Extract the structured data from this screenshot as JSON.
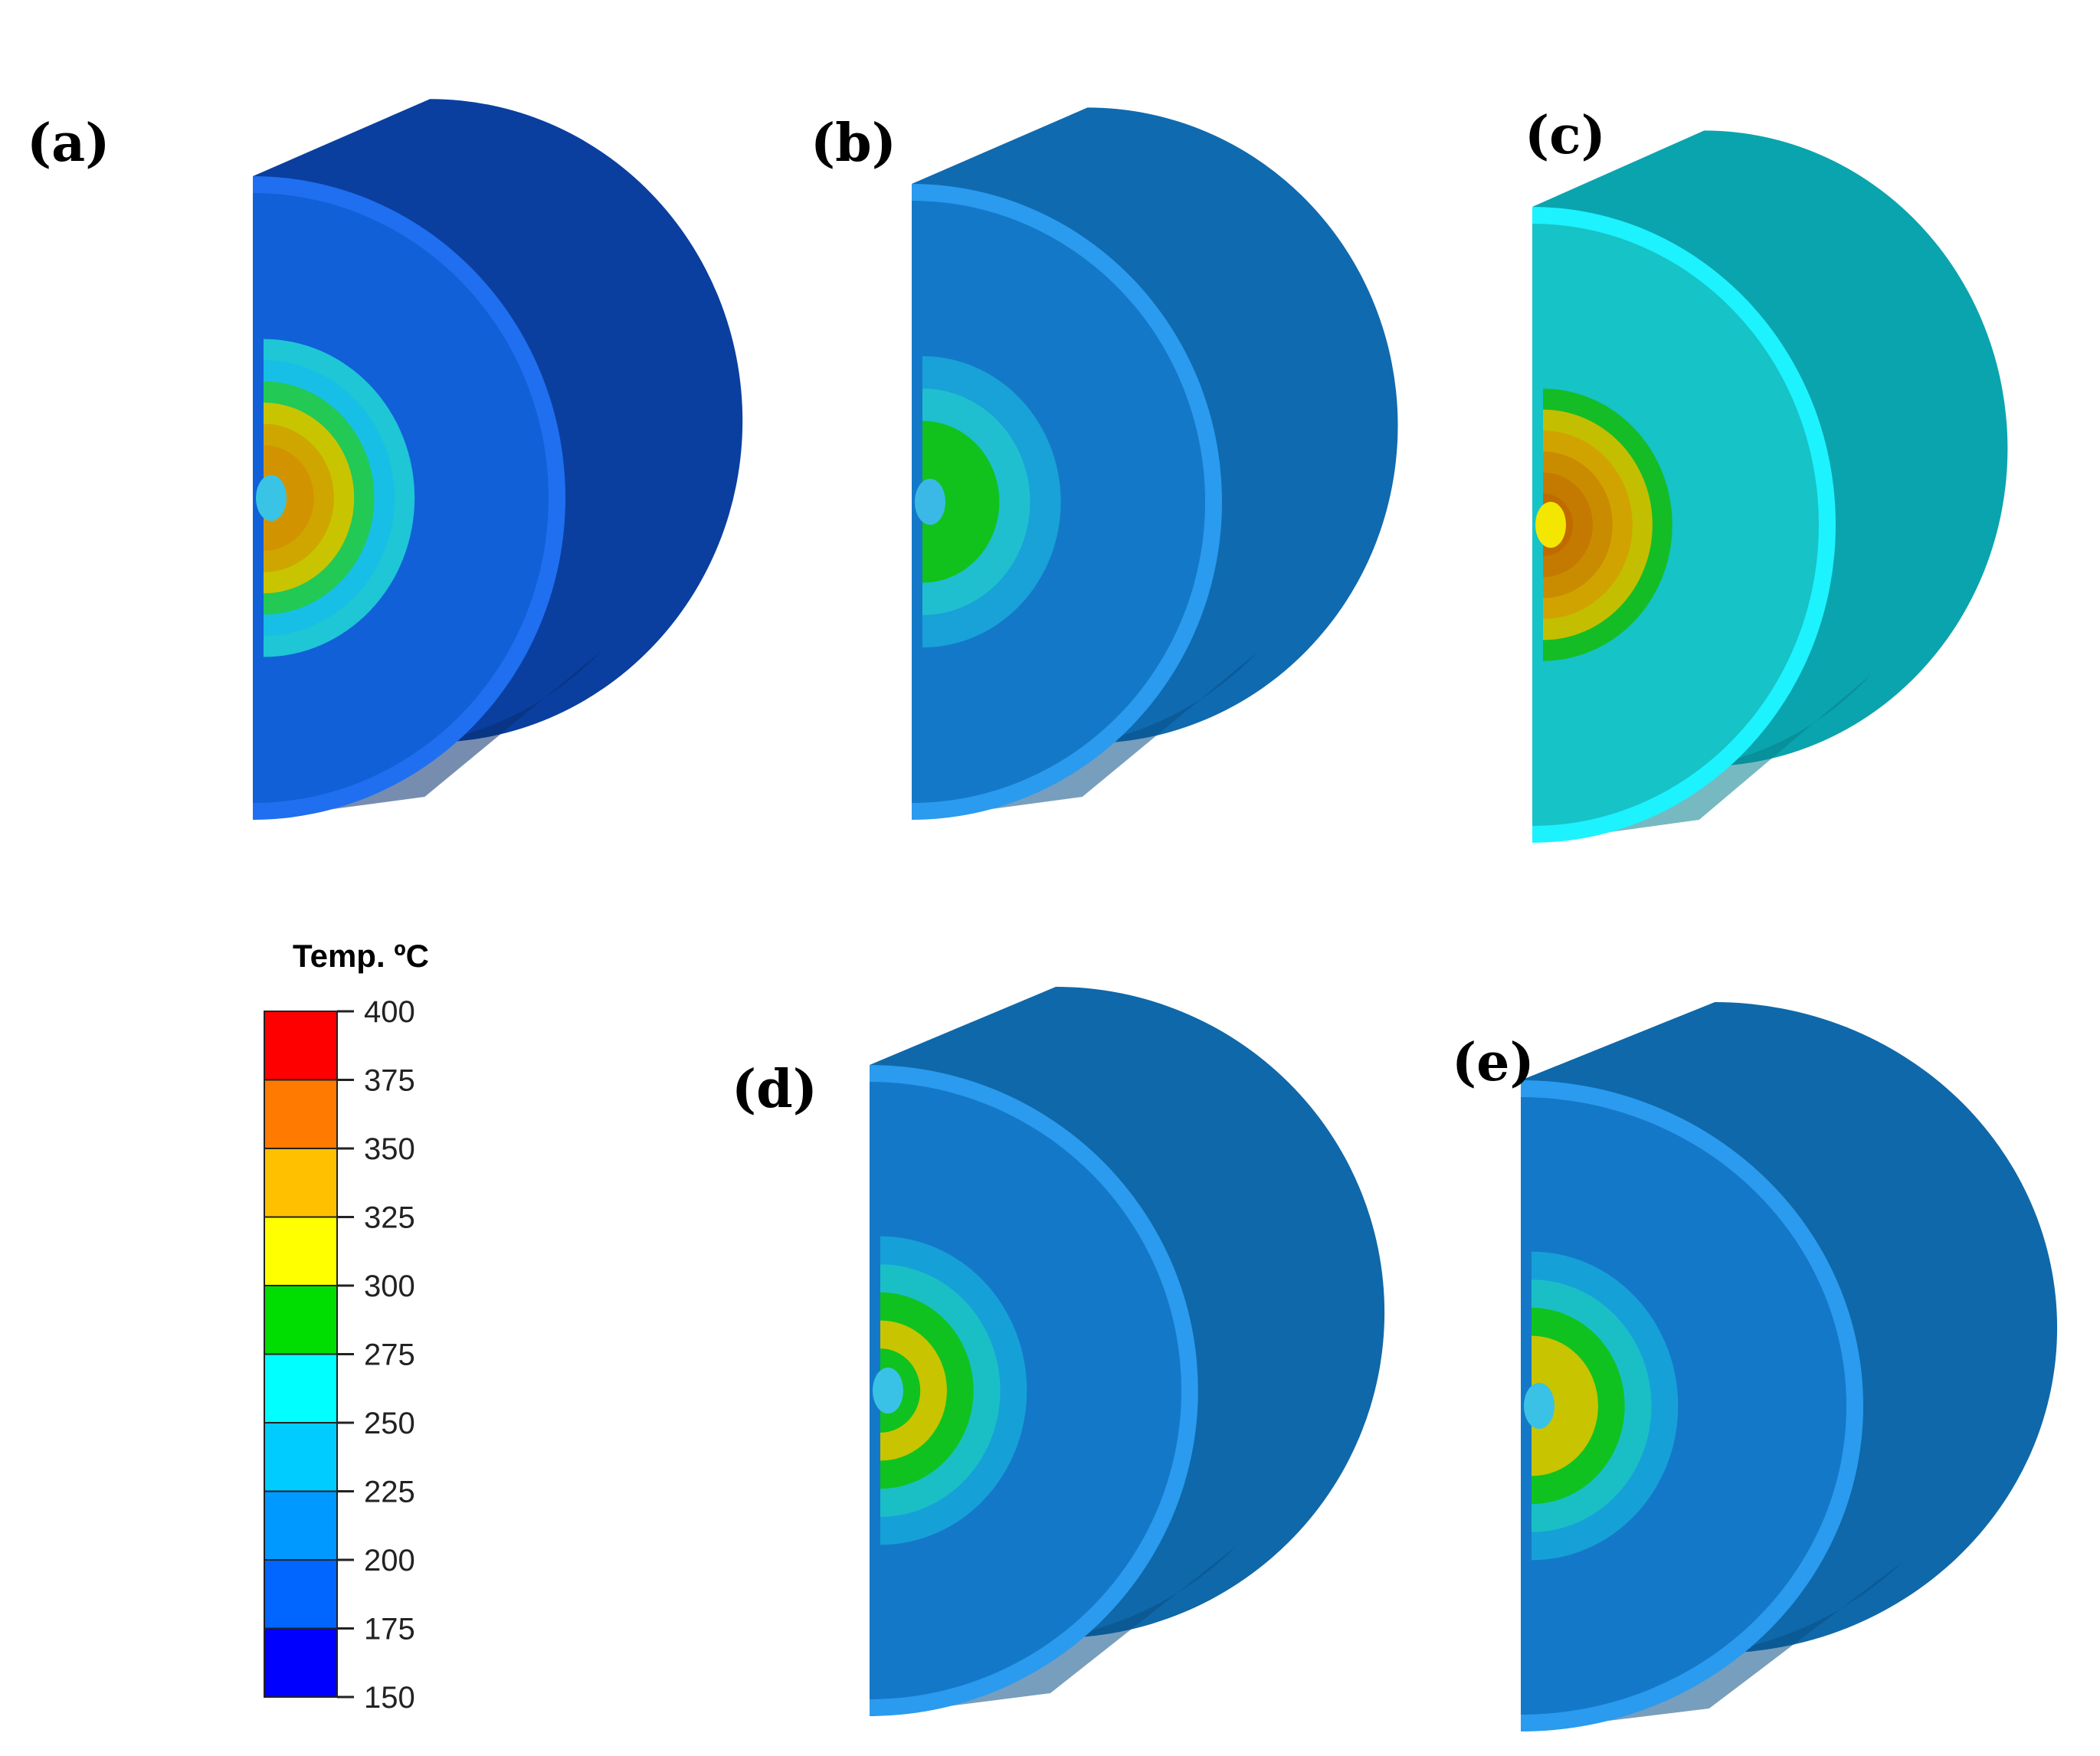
{
  "panels": [
    {
      "label": "(a)",
      "side": "#0a3fa0",
      "side_shade": "#07306f",
      "face": "#1160d8",
      "ring": "#1f6ff0",
      "contours": [
        "#1160d8",
        "#1ec6d6",
        "#17bfe6",
        "#22c955",
        "#c8c500",
        "#cfa600",
        "#d19400",
        "#d19400"
      ],
      "hot_core": "#39c4e5"
    },
    {
      "label": "(b)",
      "side": "#0f6ab0",
      "side_shade": "#0a4f86",
      "face": "#1478c8",
      "ring": "#2a9bef",
      "contours": [
        "#1478c8",
        "#18a2d8",
        "#1fbfd0",
        "#11c21c",
        "#11c21c"
      ],
      "hot_core": "#3ab9e6"
    },
    {
      "label": "(c)",
      "side": "#0aa4ae",
      "side_shade": "#07808c",
      "face": "#16c3c7",
      "ring": "#1df2ff",
      "contours": [
        "#16c3c7",
        "#16c3c7",
        "#14bd26",
        "#c3bf00",
        "#d1a300",
        "#c98c00",
        "#c47a00",
        "#bf6b00"
      ],
      "hot_core": "#f3e600"
    },
    {
      "label": "(d)",
      "side": "#0f68a9",
      "side_shade": "#0a4f86",
      "face": "#1478c8",
      "ring": "#2a9bef",
      "contours": [
        "#1478c8",
        "#16a0d8",
        "#1abfc6",
        "#10c220",
        "#c9c400",
        "#10c220"
      ],
      "hot_core": "#39c2e5"
    },
    {
      "label": "(e)",
      "side": "#0f68a9",
      "side_shade": "#0a4f86",
      "face": "#1478c8",
      "ring": "#2a9bef",
      "contours": [
        "#1478c8",
        "#16a0d8",
        "#1abfc6",
        "#10c220",
        "#c9c400",
        "#c9c400"
      ],
      "hot_core": "#39c2e5"
    }
  ],
  "legend": {
    "title": "Temp. ºC",
    "ticks": [
      "400",
      "375",
      "350",
      "325",
      "300",
      "275",
      "250",
      "225",
      "200",
      "175",
      "150"
    ],
    "colors": [
      "#ff0000",
      "#ff7a00",
      "#ffc000",
      "#ffff00",
      "#00dd00",
      "#00ffff",
      "#00ccff",
      "#0099ff",
      "#0066ff",
      "#0000ff"
    ]
  }
}
